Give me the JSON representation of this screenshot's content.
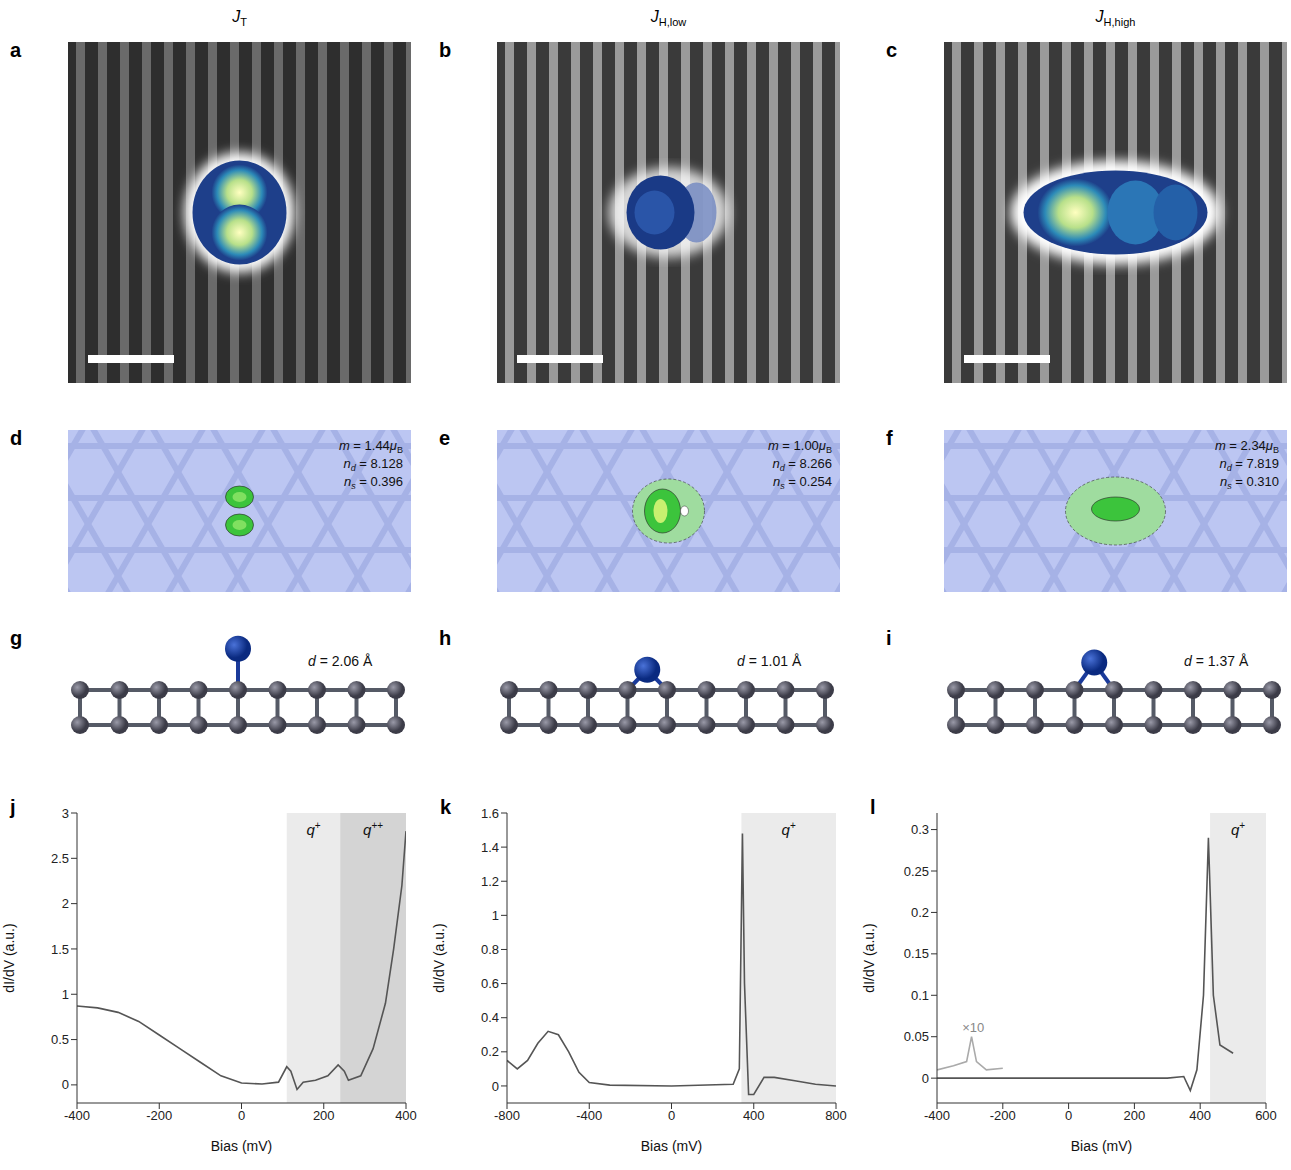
{
  "figure": {
    "columns": [
      {
        "title": {
          "main": "J",
          "sub": "T"
        },
        "letters": [
          "a",
          "d",
          "g",
          "j"
        ],
        "dft": {
          "m": 1.44,
          "n_d": 8.128,
          "n_s": 0.396
        },
        "d": 2.06
      },
      {
        "title": {
          "main": "J",
          "sub": "H,low"
        },
        "letters": [
          "b",
          "e",
          "h",
          "k"
        ],
        "dft": {
          "m": {
            "value": 1.0,
            "label": "1.00"
          },
          "n_d": 8.266,
          "n_s": 0.254
        },
        "d": 1.01
      },
      {
        "title": {
          "main": "J",
          "sub": "H,high"
        },
        "letters": [
          "c",
          "f",
          "i",
          "l"
        ],
        "dft": {
          "m": 2.34,
          "n_d": 7.819,
          "n_s": {
            "value": 0.31,
            "label": "0.310"
          }
        },
        "d": 1.37
      }
    ],
    "dft_symbols": {
      "m": {
        "main": "m",
        "unit": "μ",
        "unit_sub": "B"
      },
      "n_d": {
        "main": "n",
        "sub": "d"
      },
      "n_s": {
        "main": "n",
        "sub": "s"
      }
    },
    "equals": "=",
    "d_symbol": "d",
    "d_unit": "Å"
  },
  "chart_data": [
    {
      "type": "line",
      "xlabel": "Bias (mV)",
      "ylabel": "dI/dV (a.u.)",
      "xlim": [
        -400,
        400
      ],
      "xticks": [
        -400,
        -200,
        0,
        200,
        400
      ],
      "ylim": [
        -0.2,
        3
      ],
      "yticks": [
        0,
        0.5,
        1,
        1.5,
        2,
        2.5,
        3
      ],
      "shaded_regions": [
        {
          "label": {
            "main": "q",
            "sup": "+"
          },
          "x": [
            110,
            240
          ],
          "color": "#ebebeb"
        },
        {
          "label": {
            "main": "q",
            "sup": "++"
          },
          "x": [
            240,
            400
          ],
          "color": "#d4d4d4"
        }
      ],
      "series": [
        {
          "color": "#555555",
          "x": [
            -400,
            -350,
            -300,
            -250,
            -200,
            -150,
            -100,
            -50,
            0,
            50,
            90,
            110,
            120,
            135,
            150,
            180,
            210,
            235,
            250,
            260,
            290,
            320,
            350,
            370,
            390,
            400
          ],
          "values": [
            0.87,
            0.85,
            0.8,
            0.7,
            0.55,
            0.4,
            0.25,
            0.1,
            0.02,
            0.01,
            0.03,
            0.2,
            0.15,
            -0.05,
            0.03,
            0.05,
            0.1,
            0.22,
            0.15,
            0.05,
            0.1,
            0.4,
            0.9,
            1.5,
            2.2,
            2.8
          ]
        }
      ],
      "annotations": []
    },
    {
      "type": "line",
      "xlabel": "Bias (mV)",
      "ylabel": "dI/dV (a.u.)",
      "xlim": [
        -800,
        800
      ],
      "xticks": [
        -800,
        -400,
        0,
        400,
        800
      ],
      "ylim": [
        -0.1,
        1.6
      ],
      "yticks": [
        0,
        0.2,
        0.4,
        0.6,
        0.8,
        1,
        1.2,
        1.4,
        1.6
      ],
      "shaded_regions": [
        {
          "label": {
            "main": "q",
            "sup": "+"
          },
          "x": [
            340,
            800
          ],
          "color": "#ebebeb"
        }
      ],
      "series": [
        {
          "color": "#555555",
          "x": [
            -800,
            -750,
            -700,
            -650,
            -600,
            -550,
            -500,
            -450,
            -400,
            -300,
            0,
            300,
            330,
            345,
            355,
            375,
            400,
            450,
            500,
            600,
            700,
            800
          ],
          "values": [
            0.15,
            0.1,
            0.15,
            0.25,
            0.32,
            0.3,
            0.2,
            0.08,
            0.02,
            0.005,
            0,
            0.01,
            0.1,
            1.48,
            0.6,
            -0.05,
            -0.05,
            0.05,
            0.05,
            0.03,
            0.01,
            0
          ]
        }
      ],
      "annotations": []
    },
    {
      "type": "line",
      "xlabel": "Bias (mV)",
      "ylabel": "dI/dV (a.u.)",
      "xlim": [
        -400,
        600
      ],
      "xticks": [
        -400,
        -200,
        0,
        200,
        400,
        600
      ],
      "ylim": [
        -0.03,
        0.32
      ],
      "yticks": [
        0,
        0.05,
        0.1,
        0.15,
        0.2,
        0.25,
        0.3
      ],
      "shaded_regions": [
        {
          "label": {
            "main": "q",
            "sup": "+"
          },
          "x": [
            430,
            600
          ],
          "color": "#ebebeb"
        }
      ],
      "series": [
        {
          "color": "#555555",
          "x": [
            -400,
            -300,
            -200,
            0,
            200,
            300,
            350,
            370,
            390,
            410,
            425,
            440,
            460,
            500
          ],
          "values": [
            0,
            0,
            0,
            0,
            0,
            0,
            0.002,
            -0.015,
            0.01,
            0.1,
            0.29,
            0.1,
            0.04,
            0.03
          ]
        },
        {
          "color": "#aaaaaa",
          "x": [
            -400,
            -350,
            -310,
            -295,
            -280,
            -250,
            -200
          ],
          "values": [
            0.01,
            0.015,
            0.02,
            0.05,
            0.02,
            0.01,
            0.012
          ]
        }
      ],
      "annotations": [
        {
          "text": "×10",
          "x": -290,
          "y": 0.05
        }
      ]
    }
  ]
}
